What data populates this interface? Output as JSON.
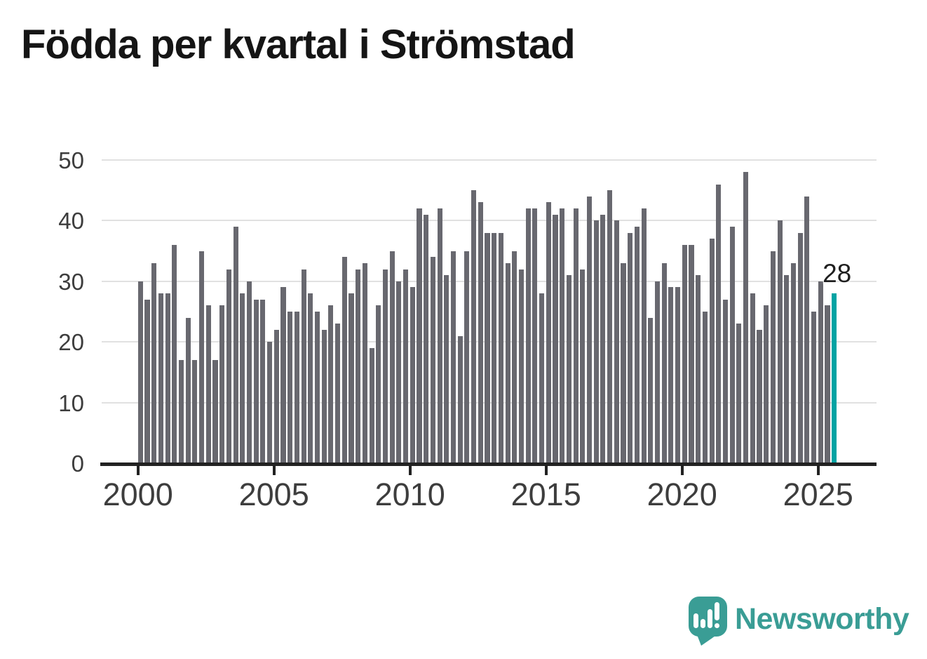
{
  "title": "Födda per kvartal i Strömstad",
  "chart_data": {
    "type": "bar",
    "title": "Födda per kvartal i Strömstad",
    "x_unit": "quarter",
    "x_start": "2000 Q1",
    "x_end": "2025 Q3",
    "values": [
      30,
      27,
      33,
      28,
      28,
      36,
      17,
      24,
      17,
      35,
      26,
      17,
      26,
      32,
      39,
      28,
      30,
      27,
      27,
      20,
      22,
      29,
      25,
      25,
      32,
      28,
      25,
      22,
      26,
      23,
      34,
      28,
      32,
      33,
      19,
      26,
      32,
      35,
      30,
      32,
      29,
      42,
      41,
      34,
      42,
      31,
      35,
      21,
      35,
      45,
      43,
      38,
      38,
      38,
      33,
      35,
      32,
      42,
      42,
      28,
      43,
      41,
      42,
      31,
      42,
      32,
      44,
      40,
      41,
      45,
      40,
      33,
      38,
      39,
      42,
      24,
      30,
      33,
      29,
      29,
      36,
      36,
      31,
      25,
      37,
      46,
      27,
      39,
      23,
      48,
      28,
      22,
      26,
      35,
      40,
      31,
      33,
      38,
      44,
      25,
      30,
      26,
      28
    ],
    "years": [
      "2000",
      "2001",
      "2002",
      "2003",
      "2004",
      "2005",
      "2006",
      "2007",
      "2008",
      "2009",
      "2010",
      "2011",
      "2012",
      "2013",
      "2014",
      "2015",
      "2016",
      "2017",
      "2018",
      "2019",
      "2020",
      "2021",
      "2022",
      "2023",
      "2024",
      "2025"
    ],
    "values_by_year": {
      "2000": [
        30,
        27,
        33,
        28
      ],
      "2001": [
        28,
        36,
        17,
        24
      ],
      "2002": [
        17,
        35,
        26,
        17
      ],
      "2003": [
        26,
        32,
        39,
        28
      ],
      "2004": [
        30,
        27,
        27,
        20
      ],
      "2005": [
        22,
        29,
        25,
        25
      ],
      "2006": [
        32,
        28,
        25,
        22
      ],
      "2007": [
        26,
        23,
        34,
        28
      ],
      "2008": [
        32,
        33,
        19,
        26
      ],
      "2009": [
        32,
        35,
        30,
        32
      ],
      "2010": [
        29,
        42,
        41,
        34
      ],
      "2011": [
        42,
        31,
        35,
        21
      ],
      "2012": [
        35,
        45,
        43,
        38
      ],
      "2013": [
        38,
        38,
        33,
        35
      ],
      "2014": [
        32,
        42,
        42,
        28
      ],
      "2015": [
        43,
        41,
        42,
        31
      ],
      "2016": [
        42,
        32,
        44,
        40
      ],
      "2017": [
        41,
        45,
        40,
        33
      ],
      "2018": [
        38,
        39,
        42,
        24
      ],
      "2019": [
        30,
        33,
        29,
        29
      ],
      "2020": [
        36,
        36,
        31,
        25
      ],
      "2021": [
        37,
        46,
        27,
        39
      ],
      "2022": [
        23,
        48,
        28,
        22
      ],
      "2023": [
        26,
        35,
        40,
        31
      ],
      "2024": [
        33,
        38,
        44,
        25
      ],
      "2025": [
        30,
        26,
        28
      ]
    },
    "highlight_index": 102,
    "annotation": {
      "text": "28",
      "bar_index": 102
    },
    "y_ticks": [
      0,
      10,
      20,
      30,
      40,
      50
    ],
    "ylim": [
      0,
      50
    ],
    "x_ticks": [
      {
        "label": "2000",
        "bar_index": 0
      },
      {
        "label": "2005",
        "bar_index": 20
      },
      {
        "label": "2010",
        "bar_index": 40
      },
      {
        "label": "2015",
        "bar_index": 60
      },
      {
        "label": "2020",
        "bar_index": 80
      },
      {
        "label": "2025",
        "bar_index": 100
      }
    ],
    "grid": "horizontal",
    "legend": "none",
    "colors": {
      "bar": "#68686f",
      "highlight": "#00a3a3",
      "gridline": "#e1e1e1",
      "axis": "#222222",
      "tick_text": "#3d3d3d",
      "title_text": "#151515",
      "annotation_text": "#1f1f1f"
    }
  },
  "footer": {
    "brand": "Newsworthy",
    "logo_icon": "newsworthy-speech-bubble-barchart-icon",
    "brand_color": "#3a9d95"
  }
}
